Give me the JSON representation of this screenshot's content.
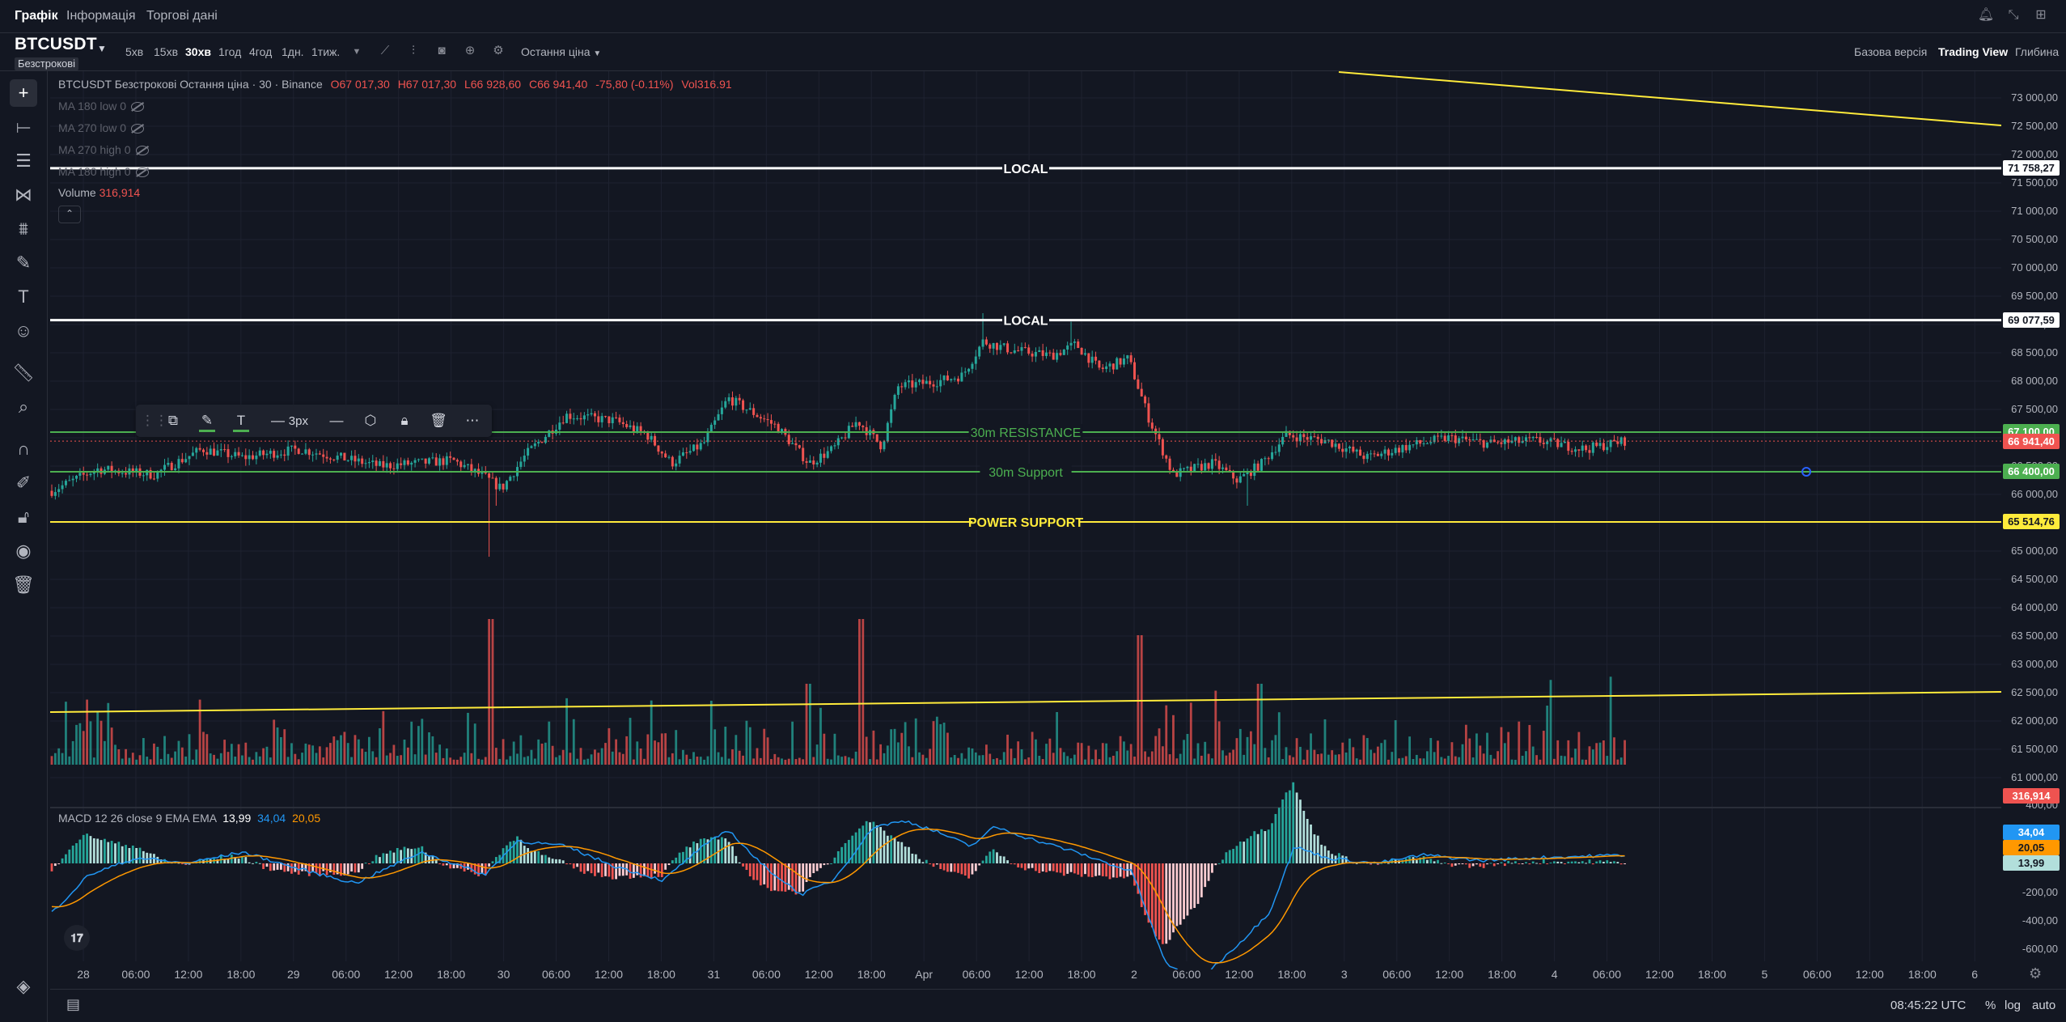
{
  "nav": {
    "tabs": [
      {
        "label": "Графік",
        "active": true
      },
      {
        "label": "Інформація",
        "active": false
      },
      {
        "label": "Торгові дані",
        "active": false
      }
    ],
    "icons": [
      "bell-icon",
      "collapse-icon",
      "layout-grid-icon"
    ]
  },
  "toolbar": {
    "symbol": "BTCUSDT",
    "contract_type": "Безстрокові",
    "timeframes": [
      {
        "label": "5хв",
        "active": false
      },
      {
        "label": "15хв",
        "active": false
      },
      {
        "label": "30хв",
        "active": true
      },
      {
        "label": "1год",
        "active": false
      },
      {
        "label": "4год",
        "active": false
      },
      {
        "label": "1дн.",
        "active": false
      },
      {
        "label": "1тиж.",
        "active": false
      }
    ],
    "price_type": "Остання ціна",
    "views": [
      {
        "label": "Базова версія",
        "active": false
      },
      {
        "label": "Trading View",
        "active": true
      },
      {
        "label": "Глибина",
        "active": false
      }
    ]
  },
  "legend": {
    "title": "BTCUSDT Безстрокові Остання ціна · 30 · Binance",
    "ohlc": {
      "o": "O67 017,30",
      "h": "H67 017,30",
      "l": "L66 928,60",
      "c": "C66 941,40",
      "chg": "-75,80 (-0.11%)",
      "vol": "Vol316.91"
    },
    "indicators": [
      "MA 180 low 0",
      "MA 270 low 0",
      "MA 270 high 0",
      "MA 180 high 0"
    ],
    "volume_label": "Volume",
    "volume_value": "316,914",
    "macd_label": "MACD 12 26 close 9 EMA EMA",
    "macd_values": {
      "hist": "13,99",
      "macd": "34,04",
      "signal": "20,05"
    }
  },
  "drawing_toolbar": {
    "width_label": "3px"
  },
  "lines": [
    {
      "label": "LOCAL",
      "price": 71758.27,
      "tag": "71 758,27",
      "color": "#ffffff"
    },
    {
      "label": "LOCAL",
      "price": 69077.59,
      "tag": "69 077,59",
      "color": "#ffffff"
    },
    {
      "label": "30m RESISTANCE",
      "price": 67100,
      "tag": "67 100,00",
      "color": "#4caf50"
    },
    {
      "label": "30m Support",
      "price": 66400,
      "tag": "66 400,00",
      "color": "#4caf50"
    },
    {
      "label": "POWER SUPPORT",
      "price": 65514.76,
      "tag": "65 514,76",
      "color": "#ffeb3b"
    }
  ],
  "price_axis": {
    "labels": [
      "73 000,00",
      "72 500,00",
      "72 000,00",
      "71 500,00",
      "71 000,00",
      "70 500,00",
      "70 000,00",
      "69 500,00",
      "69 000,00",
      "68 500,00",
      "68 000,00",
      "67 500,00",
      "67 000,00",
      "66 500,00",
      "66 000,00",
      "65 500,00",
      "65 000,00",
      "64 500,00",
      "64 000,00",
      "63 500,00",
      "63 000,00",
      "62 500,00",
      "62 000,00",
      "61 500,00",
      "61 000,00"
    ],
    "current_price_tag": "66 941,40",
    "volume_axis_label": "400,00",
    "volume_tag": "316,914",
    "macd_axis_labels": [
      "-200,00",
      "-400,00",
      "-600,00"
    ],
    "macd_tags": [
      "34,04",
      "20,05",
      "13,99"
    ]
  },
  "time_axis": [
    "28",
    "06:00",
    "12:00",
    "18:00",
    "29",
    "06:00",
    "12:00",
    "18:00",
    "30",
    "06:00",
    "12:00",
    "18:00",
    "31",
    "06:00",
    "12:00",
    "18:00",
    "Apr",
    "06:00",
    "12:00",
    "18:00",
    "2",
    "06:00",
    "12:00",
    "18:00",
    "3",
    "06:00",
    "12:00",
    "18:00",
    "4",
    "06:00",
    "12:00",
    "18:00",
    "5",
    "06:00",
    "12:00",
    "18:00",
    "6"
  ],
  "bottom": {
    "clock": "08:45:22 UTC",
    "options": [
      "%",
      "log",
      "auto"
    ]
  },
  "colors": {
    "up": "#26a69a",
    "down": "#ef5350",
    "background": "#131722",
    "grid": "#1e2230",
    "macd": "#2196f3",
    "signal": "#ff9800"
  }
}
